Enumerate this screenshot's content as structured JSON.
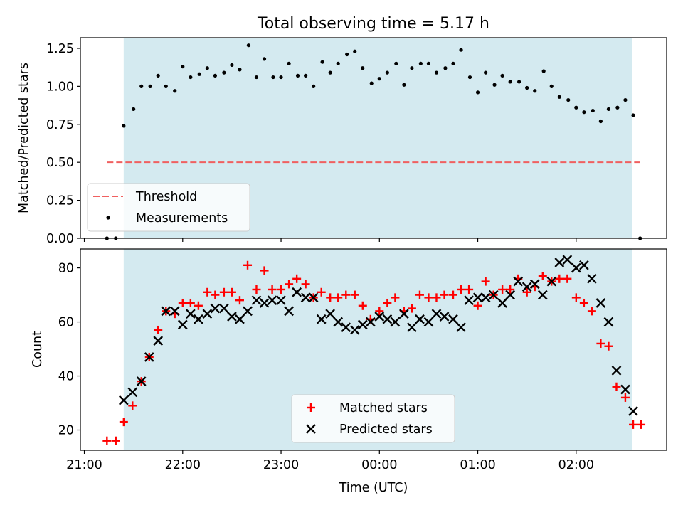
{
  "chart_data": [
    {
      "type": "scatter",
      "title": "Total observing time = 5.17 h",
      "xlabel": "",
      "ylabel": "Matched/Predicted stars",
      "ylim": [
        0,
        1.32
      ],
      "yticks": [
        0,
        0.25,
        0.5,
        0.75,
        1.0,
        1.25
      ],
      "ytick_labels": [
        "0.00",
        "0.25",
        "0.50",
        "0.75",
        "1.00",
        "1.25"
      ],
      "x_unit": "hours since 21:00 UTC",
      "xlim": [
        -0.04,
        5.92
      ],
      "shaded_span": [
        0.4,
        5.57
      ],
      "shade_color": "#d4eaf0",
      "legend_position": "lower left",
      "threshold": {
        "name": "Threshold",
        "value": 0.5,
        "x_range": [
          0.23,
          5.65
        ],
        "color": "#f06060"
      },
      "series": [
        {
          "name": "Measurements",
          "color": "#000000",
          "x": [
            0.23,
            0.32,
            0.4,
            0.5,
            0.58,
            0.67,
            0.75,
            0.83,
            0.92,
            1.0,
            1.08,
            1.17,
            1.25,
            1.33,
            1.42,
            1.5,
            1.58,
            1.67,
            1.75,
            1.83,
            1.92,
            2.0,
            2.08,
            2.17,
            2.25,
            2.33,
            2.42,
            2.5,
            2.58,
            2.67,
            2.75,
            2.83,
            2.92,
            3.0,
            3.08,
            3.17,
            3.25,
            3.33,
            3.42,
            3.5,
            3.58,
            3.67,
            3.75,
            3.83,
            3.92,
            4.0,
            4.08,
            4.17,
            4.25,
            4.33,
            4.42,
            4.5,
            4.58,
            4.67,
            4.75,
            4.83,
            4.92,
            5.0,
            5.08,
            5.17,
            5.25,
            5.33,
            5.42,
            5.5,
            5.58,
            5.65
          ],
          "y": [
            0.0,
            0.0,
            0.74,
            0.85,
            1.0,
            1.0,
            1.07,
            1.0,
            0.97,
            1.13,
            1.06,
            1.08,
            1.12,
            1.07,
            1.09,
            1.14,
            1.11,
            1.27,
            1.06,
            1.18,
            1.06,
            1.06,
            1.15,
            1.07,
            1.07,
            1.0,
            1.16,
            1.09,
            1.15,
            1.21,
            1.23,
            1.12,
            1.02,
            1.05,
            1.09,
            1.15,
            1.01,
            1.12,
            1.15,
            1.15,
            1.09,
            1.12,
            1.15,
            1.24,
            1.06,
            0.96,
            1.09,
            1.01,
            1.07,
            1.03,
            1.03,
            0.99,
            0.97,
            1.1,
            1.0,
            0.93,
            0.91,
            0.86,
            0.83,
            0.84,
            0.77,
            0.85,
            0.86,
            0.91,
            0.81,
            0.0
          ]
        }
      ]
    },
    {
      "type": "scatter",
      "xlabel": "Time (UTC)",
      "ylabel": "Count",
      "ylim": [
        12.5,
        87
      ],
      "yticks": [
        20,
        40,
        60,
        80
      ],
      "ytick_labels": [
        "20",
        "40",
        "60",
        "80"
      ],
      "x_unit": "hours since 21:00 UTC",
      "xlim": [
        -0.04,
        5.92
      ],
      "xticks": [
        0,
        1,
        2,
        3,
        4,
        5
      ],
      "xtick_labels": [
        "21:00",
        "22:00",
        "23:00",
        "00:00",
        "01:00",
        "02:00"
      ],
      "shaded_span": [
        0.4,
        5.57
      ],
      "shade_color": "#d4eaf0",
      "legend_position": "lower center",
      "series": [
        {
          "name": "Matched stars",
          "marker": "plus",
          "color": "#ff0000",
          "x": [
            0.23,
            0.32,
            0.4,
            0.49,
            0.58,
            0.66,
            0.75,
            0.83,
            0.92,
            1.0,
            1.08,
            1.16,
            1.25,
            1.33,
            1.42,
            1.5,
            1.58,
            1.66,
            1.75,
            1.83,
            1.91,
            2.0,
            2.08,
            2.16,
            2.25,
            2.33,
            2.41,
            2.5,
            2.58,
            2.66,
            2.75,
            2.83,
            2.91,
            3.0,
            3.08,
            3.16,
            3.25,
            3.33,
            3.41,
            3.5,
            3.58,
            3.66,
            3.75,
            3.83,
            3.91,
            4.0,
            4.08,
            4.16,
            4.25,
            4.33,
            4.41,
            4.5,
            4.58,
            4.66,
            4.75,
            4.83,
            4.91,
            5.0,
            5.08,
            5.16,
            5.25,
            5.33,
            5.41,
            5.5,
            5.58,
            5.66
          ],
          "y": [
            16,
            16,
            23,
            29,
            38,
            47,
            57,
            64,
            63,
            67,
            67,
            66,
            71,
            70,
            71,
            71,
            68,
            81,
            72,
            79,
            72,
            72,
            74,
            76,
            74,
            69,
            71,
            69,
            69,
            70,
            70,
            66,
            61,
            64,
            67,
            69,
            64,
            65,
            70,
            69,
            69,
            70,
            70,
            72,
            72,
            66,
            75,
            70,
            72,
            72,
            76,
            71,
            73,
            77,
            75,
            76,
            76,
            69,
            67,
            64,
            52,
            51,
            36,
            32,
            22,
            22
          ]
        },
        {
          "name": "Predicted stars",
          "marker": "x",
          "color": "#000000",
          "x": [
            0.4,
            0.49,
            0.58,
            0.66,
            0.75,
            0.83,
            0.92,
            1.0,
            1.08,
            1.16,
            1.25,
            1.33,
            1.42,
            1.5,
            1.58,
            1.66,
            1.75,
            1.83,
            1.91,
            2.0,
            2.08,
            2.16,
            2.25,
            2.33,
            2.41,
            2.5,
            2.58,
            2.66,
            2.75,
            2.83,
            2.91,
            3.0,
            3.08,
            3.16,
            3.25,
            3.33,
            3.41,
            3.5,
            3.58,
            3.66,
            3.75,
            3.83,
            3.91,
            4.0,
            4.08,
            4.16,
            4.25,
            4.33,
            4.41,
            4.5,
            4.58,
            4.66,
            4.75,
            4.83,
            4.91,
            5.0,
            5.08,
            5.16,
            5.25,
            5.33,
            5.41,
            5.5,
            5.58
          ],
          "y": [
            31,
            34,
            38,
            47,
            53,
            64,
            64,
            59,
            63,
            61,
            63,
            65,
            65,
            62,
            61,
            64,
            68,
            67,
            68,
            68,
            64,
            71,
            69,
            69,
            61,
            63,
            60,
            58,
            57,
            59,
            60,
            62,
            61,
            60,
            63,
            58,
            61,
            60,
            63,
            62,
            61,
            58,
            68,
            69,
            69,
            70,
            67,
            70,
            75,
            73,
            74,
            70,
            75,
            82,
            83,
            80,
            81,
            76,
            67,
            60,
            42,
            35,
            27
          ]
        }
      ]
    }
  ]
}
